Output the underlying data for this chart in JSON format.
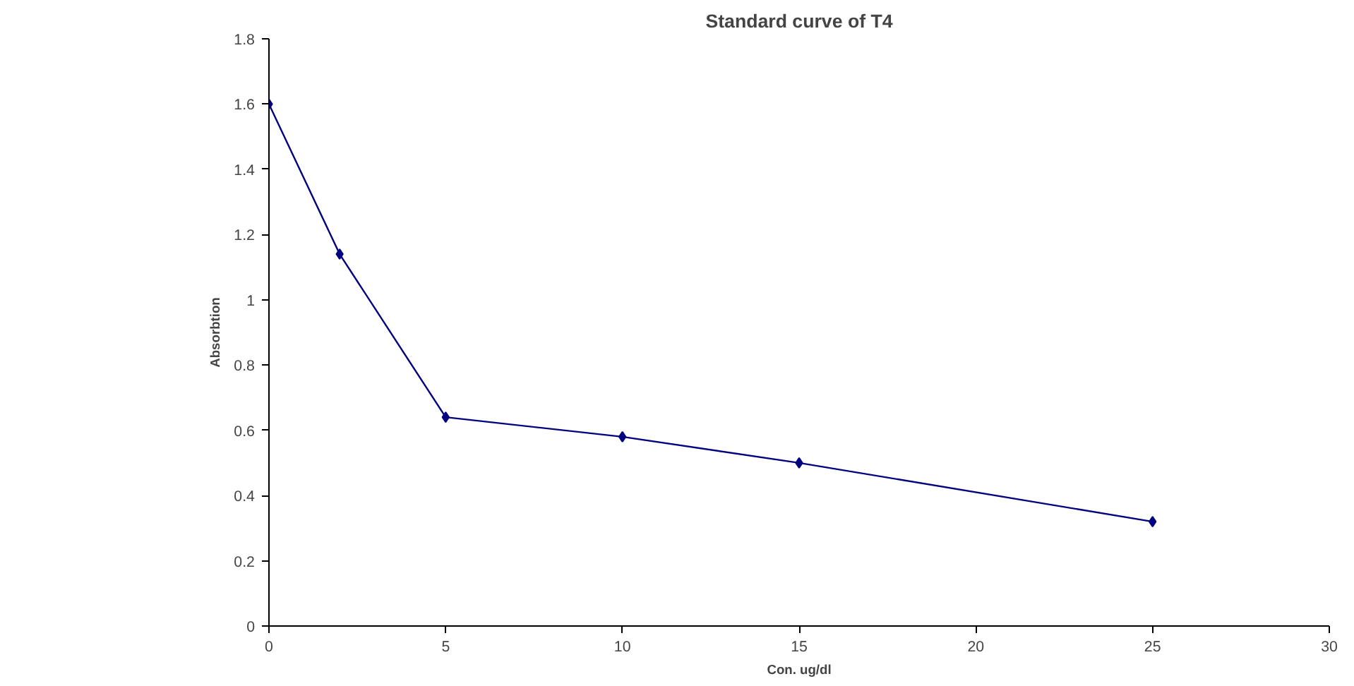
{
  "chart_data": {
    "type": "line",
    "title": "Standard curve of T4",
    "xlabel": "Con. ug/dl",
    "ylabel": "Absorbtion",
    "x": [
      0,
      2,
      5,
      10,
      15,
      25
    ],
    "series": [
      {
        "color": "#000080",
        "values": [
          1.6,
          1.14,
          0.64,
          0.58,
          0.5,
          0.32
        ]
      }
    ],
    "xlim": [
      0,
      30
    ],
    "xticks": [
      0,
      5,
      10,
      15,
      20,
      25,
      30
    ],
    "ylim": [
      0,
      1.8
    ],
    "yticks": [
      0,
      0.2,
      0.4,
      0.6,
      0.8,
      1,
      1.2,
      1.4,
      1.6,
      1.8
    ],
    "grid": false,
    "marker": "diamond",
    "line_style": "solid"
  }
}
